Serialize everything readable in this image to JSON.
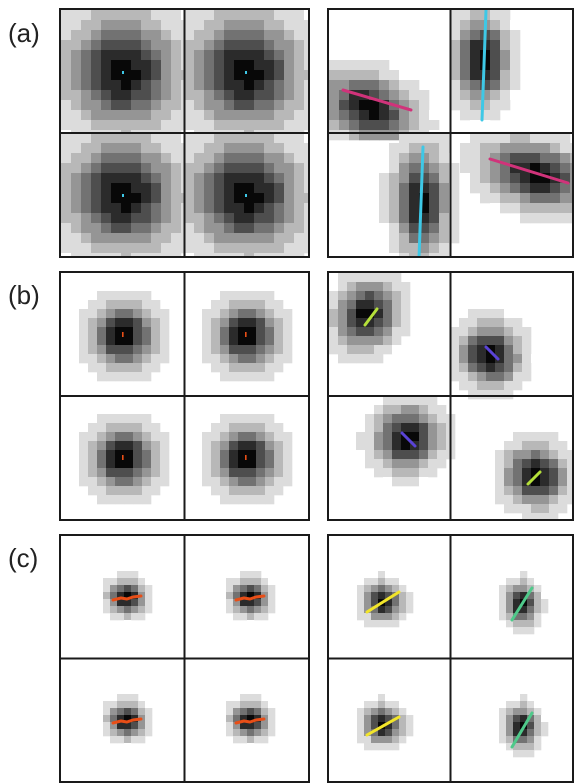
{
  "labels": {
    "a": "(a)",
    "b": "(b)",
    "c": "(c)"
  },
  "colors": {
    "cyan": "#3ec8e6",
    "magenta": "#d0337a",
    "lime": "#b5e03a",
    "violet": "#5a43d6",
    "orange": "#e84e17",
    "yellow": "#f2e52a",
    "green": "#4fc98a",
    "border": "#1a1a1a"
  }
}
